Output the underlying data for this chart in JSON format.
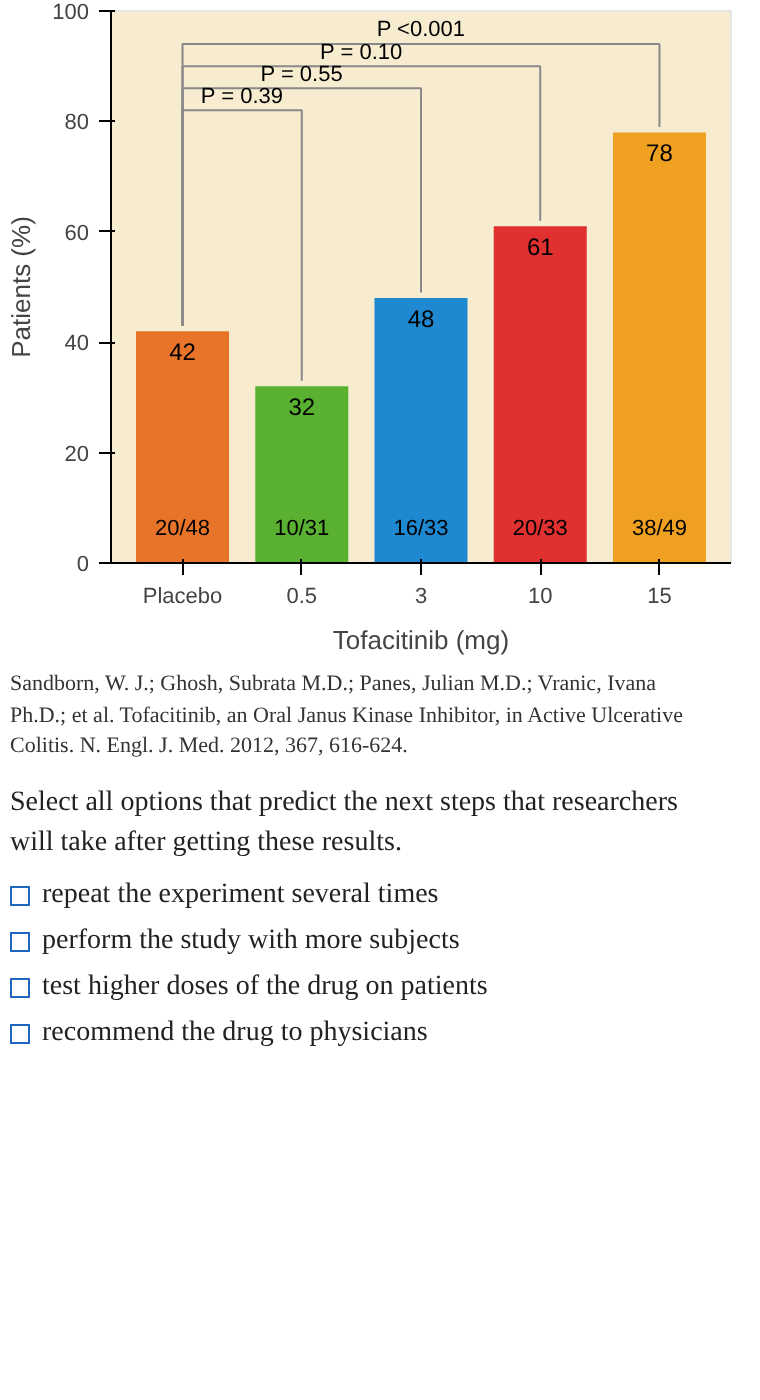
{
  "chart_data": {
    "type": "bar",
    "xlabel": "Tofacitinib (mg)",
    "ylabel": "Patients (%)",
    "categories": [
      "Placebo",
      "0.5",
      "3",
      "10",
      "15"
    ],
    "values": [
      42,
      32,
      48,
      61,
      78
    ],
    "colors": [
      "#e8742a",
      "#5ab030",
      "#1e88d0",
      "#e03030",
      "#f0a020"
    ],
    "data_labels": true,
    "ylim": [
      0,
      100
    ],
    "yticks": [
      0,
      20,
      40,
      60,
      80,
      100
    ],
    "annotations": [
      "20/48",
      "10/31",
      "16/33",
      "20/33",
      "38/49",
      "P <0.001",
      "P = 0.10",
      "P = 0.55",
      "P = 0.39",
      "Sandborn, W. J.; Ghosh, Subrata M.D.; Panes, Julian M.D.; Vranic, Ivana Ph.D.; et al. Tofacitinib, an Oral Janus Kinase Inhibitor, in Active Ulcerative Colitis. N. Engl. J. Med. 2012, 367, 616-624.",
      "Select all options that predict the next steps that researchers will take after getting these results.",
      "repeat the experiment several times",
      "perform the study with more subjects",
      "test higher doses of the drug on patients",
      "recommend the drug to physicians"
    ]
  }
}
